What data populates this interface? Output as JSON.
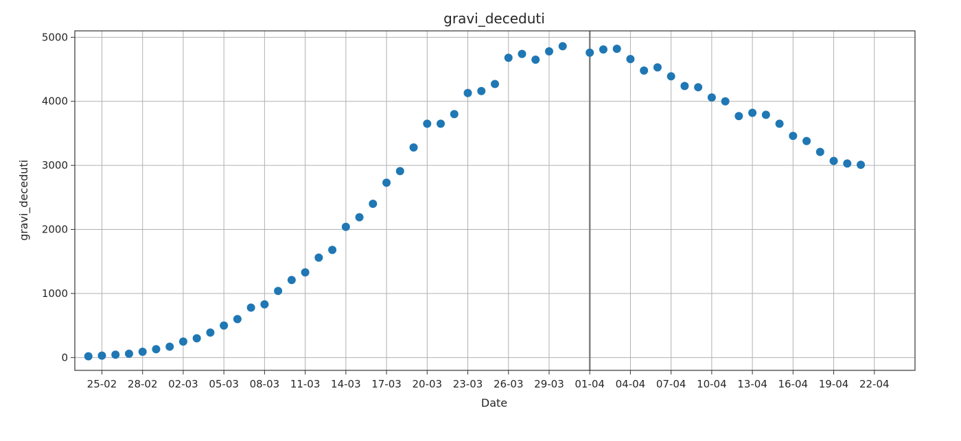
{
  "chart_data": {
    "type": "scatter",
    "title": "gravi_deceduti",
    "xlabel": "Date",
    "ylabel": "gravi_deceduti",
    "x_tick_labels": [
      "25-02",
      "28-02",
      "02-03",
      "05-03",
      "08-03",
      "11-03",
      "14-03",
      "17-03",
      "20-03",
      "23-03",
      "26-03",
      "29-03",
      "01-04",
      "04-04",
      "07-04",
      "10-04",
      "13-04",
      "16-04",
      "19-04",
      "22-04"
    ],
    "y_ticks": [
      0,
      1000,
      2000,
      3000,
      4000,
      5000
    ],
    "y_tick_labels": [
      "0",
      "1000",
      "2000",
      "3000",
      "4000",
      "5000"
    ],
    "ylim": [
      -200,
      5100
    ],
    "xlim": [
      "2020-02-23",
      "2020-04-25"
    ],
    "grid": true,
    "vertical_line": {
      "x": "2020-04-01",
      "color": "#808080"
    },
    "marker_color": "#1f77b4",
    "series": [
      {
        "x": [
          "2020-02-24",
          "2020-02-25",
          "2020-02-26",
          "2020-02-27",
          "2020-02-28",
          "2020-02-29",
          "2020-03-01",
          "2020-03-02",
          "2020-03-03",
          "2020-03-04",
          "2020-03-05",
          "2020-03-06",
          "2020-03-07",
          "2020-03-08",
          "2020-03-09",
          "2020-03-10",
          "2020-03-11",
          "2020-03-12",
          "2020-03-13",
          "2020-03-14",
          "2020-03-15",
          "2020-03-16",
          "2020-03-17",
          "2020-03-18",
          "2020-03-19",
          "2020-03-20",
          "2020-03-21",
          "2020-03-22",
          "2020-03-23",
          "2020-03-24",
          "2020-03-25",
          "2020-03-26",
          "2020-03-27",
          "2020-03-28",
          "2020-03-29",
          "2020-03-30",
          "2020-03-31",
          "2020-04-01",
          "2020-04-02",
          "2020-04-03",
          "2020-04-04",
          "2020-04-05",
          "2020-04-06",
          "2020-04-07",
          "2020-04-08",
          "2020-04-09",
          "2020-04-10",
          "2020-04-11",
          "2020-04-12",
          "2020-04-13",
          "2020-04-14",
          "2020-04-15",
          "2020-04-16",
          "2020-04-17",
          "2020-04-18",
          "2020-04-19",
          "2020-04-20",
          "2020-04-21",
          "2020-04-22"
        ],
        "y": [
          20,
          30,
          45,
          60,
          90,
          130,
          170,
          250,
          300,
          390,
          500,
          600,
          780,
          830,
          1040,
          1210,
          1330,
          1560,
          1680,
          2040,
          2190,
          2400,
          2730,
          2910,
          3280,
          3650,
          3650,
          3800,
          4130,
          4160,
          4270,
          4680,
          4740,
          4650,
          4780,
          4860,
          null,
          4760,
          4810,
          4820,
          4660,
          4480,
          4530,
          4390,
          4240,
          4220,
          4060,
          4000,
          3770,
          3820,
          3790,
          3650,
          3460,
          3380,
          3210,
          3070,
          3030,
          3010,
          null
        ]
      }
    ]
  }
}
